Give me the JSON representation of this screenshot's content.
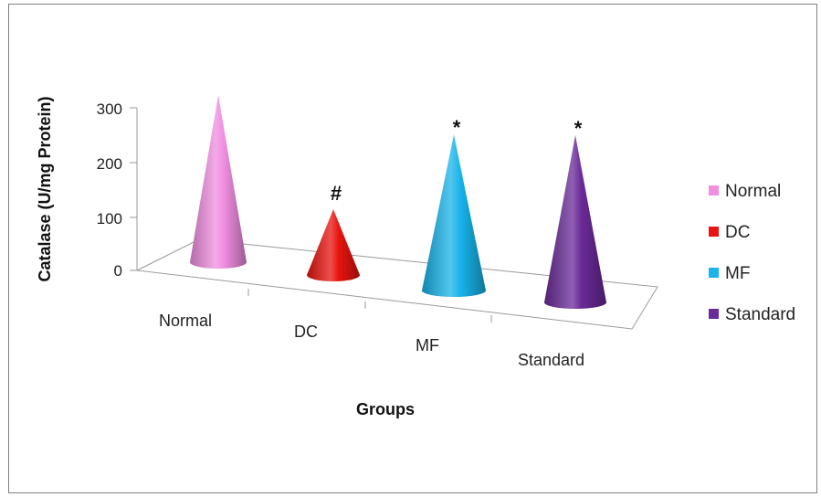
{
  "chart_data": {
    "type": "bar",
    "style": "3d-cone",
    "categories": [
      "Normal",
      "DC",
      "MF",
      "Standard"
    ],
    "values": [
      300,
      118,
      280,
      300
    ],
    "colors": [
      "#f08ee0",
      "#e8140f",
      "#18b4ea",
      "#6a2a98"
    ],
    "annotations": [
      "",
      "#",
      "*",
      "*"
    ],
    "xlabel": "Groups",
    "ylabel": "Catalase (U/mg Protein)",
    "ylim": [
      0,
      300
    ],
    "yticks": [
      0,
      100,
      200,
      300
    ],
    "legend": {
      "position": "right",
      "entries": [
        "Normal",
        "DC",
        "MF",
        "Standard"
      ]
    },
    "grid": false
  }
}
